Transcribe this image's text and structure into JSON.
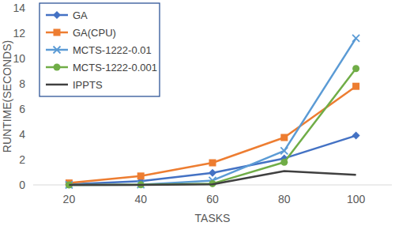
{
  "chart_data": {
    "type": "line",
    "x_label": "TASKS",
    "y_label": "RUNTIME(SECONDS)",
    "categories": [
      "20",
      "40",
      "60",
      "80",
      "100"
    ],
    "series": [
      {
        "name": "GA",
        "color": "#4472c4",
        "marker": "diamond",
        "values": [
          0.05,
          0.3,
          0.95,
          2.1,
          3.9
        ]
      },
      {
        "name": "GA(CPU)",
        "color": "#ed7d31",
        "marker": "square",
        "values": [
          0.15,
          0.7,
          1.75,
          3.75,
          7.8
        ]
      },
      {
        "name": "MCTS-1222-0.01",
        "color": "#5b9bd5",
        "marker": "x",
        "values": [
          0,
          0.02,
          0.35,
          2.7,
          11.6
        ]
      },
      {
        "name": "MCTS-1222-0.001",
        "color": "#70ad47",
        "marker": "circle",
        "values": [
          0,
          0.01,
          0.1,
          1.8,
          9.2
        ]
      },
      {
        "name": "IPPTS",
        "color": "#404040",
        "marker": "none",
        "values": [
          0,
          0,
          0.05,
          1.1,
          0.8
        ]
      }
    ],
    "ylim": [
      0,
      14
    ],
    "yticks": [
      0,
      2,
      4,
      6,
      8,
      10,
      12,
      14
    ],
    "grid": false,
    "legend": "top-left"
  }
}
